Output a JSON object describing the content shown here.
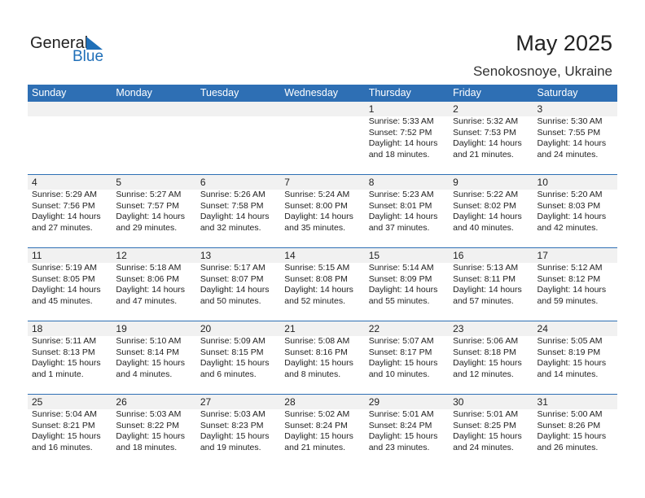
{
  "logo": {
    "general": "General",
    "blue": "Blue"
  },
  "title": "May 2025",
  "location": "Senokosnoye, Ukraine",
  "colors": {
    "header": "#2e6fb4",
    "strip": "#f1f1f1",
    "logo_blue": "#1f6fb8"
  },
  "weekdays": [
    "Sunday",
    "Monday",
    "Tuesday",
    "Wednesday",
    "Thursday",
    "Friday",
    "Saturday"
  ],
  "weeks": [
    [
      null,
      null,
      null,
      null,
      {
        "day": "1",
        "sunrise": "Sunrise: 5:33 AM",
        "sunset": "Sunset: 7:52 PM",
        "daylight": "Daylight: 14 hours",
        "minutes": "and 18 minutes."
      },
      {
        "day": "2",
        "sunrise": "Sunrise: 5:32 AM",
        "sunset": "Sunset: 7:53 PM",
        "daylight": "Daylight: 14 hours",
        "minutes": "and 21 minutes."
      },
      {
        "day": "3",
        "sunrise": "Sunrise: 5:30 AM",
        "sunset": "Sunset: 7:55 PM",
        "daylight": "Daylight: 14 hours",
        "minutes": "and 24 minutes."
      }
    ],
    [
      {
        "day": "4",
        "sunrise": "Sunrise: 5:29 AM",
        "sunset": "Sunset: 7:56 PM",
        "daylight": "Daylight: 14 hours",
        "minutes": "and 27 minutes."
      },
      {
        "day": "5",
        "sunrise": "Sunrise: 5:27 AM",
        "sunset": "Sunset: 7:57 PM",
        "daylight": "Daylight: 14 hours",
        "minutes": "and 29 minutes."
      },
      {
        "day": "6",
        "sunrise": "Sunrise: 5:26 AM",
        "sunset": "Sunset: 7:58 PM",
        "daylight": "Daylight: 14 hours",
        "minutes": "and 32 minutes."
      },
      {
        "day": "7",
        "sunrise": "Sunrise: 5:24 AM",
        "sunset": "Sunset: 8:00 PM",
        "daylight": "Daylight: 14 hours",
        "minutes": "and 35 minutes."
      },
      {
        "day": "8",
        "sunrise": "Sunrise: 5:23 AM",
        "sunset": "Sunset: 8:01 PM",
        "daylight": "Daylight: 14 hours",
        "minutes": "and 37 minutes."
      },
      {
        "day": "9",
        "sunrise": "Sunrise: 5:22 AM",
        "sunset": "Sunset: 8:02 PM",
        "daylight": "Daylight: 14 hours",
        "minutes": "and 40 minutes."
      },
      {
        "day": "10",
        "sunrise": "Sunrise: 5:20 AM",
        "sunset": "Sunset: 8:03 PM",
        "daylight": "Daylight: 14 hours",
        "minutes": "and 42 minutes."
      }
    ],
    [
      {
        "day": "11",
        "sunrise": "Sunrise: 5:19 AM",
        "sunset": "Sunset: 8:05 PM",
        "daylight": "Daylight: 14 hours",
        "minutes": "and 45 minutes."
      },
      {
        "day": "12",
        "sunrise": "Sunrise: 5:18 AM",
        "sunset": "Sunset: 8:06 PM",
        "daylight": "Daylight: 14 hours",
        "minutes": "and 47 minutes."
      },
      {
        "day": "13",
        "sunrise": "Sunrise: 5:17 AM",
        "sunset": "Sunset: 8:07 PM",
        "daylight": "Daylight: 14 hours",
        "minutes": "and 50 minutes."
      },
      {
        "day": "14",
        "sunrise": "Sunrise: 5:15 AM",
        "sunset": "Sunset: 8:08 PM",
        "daylight": "Daylight: 14 hours",
        "minutes": "and 52 minutes."
      },
      {
        "day": "15",
        "sunrise": "Sunrise: 5:14 AM",
        "sunset": "Sunset: 8:09 PM",
        "daylight": "Daylight: 14 hours",
        "minutes": "and 55 minutes."
      },
      {
        "day": "16",
        "sunrise": "Sunrise: 5:13 AM",
        "sunset": "Sunset: 8:11 PM",
        "daylight": "Daylight: 14 hours",
        "minutes": "and 57 minutes."
      },
      {
        "day": "17",
        "sunrise": "Sunrise: 5:12 AM",
        "sunset": "Sunset: 8:12 PM",
        "daylight": "Daylight: 14 hours",
        "minutes": "and 59 minutes."
      }
    ],
    [
      {
        "day": "18",
        "sunrise": "Sunrise: 5:11 AM",
        "sunset": "Sunset: 8:13 PM",
        "daylight": "Daylight: 15 hours",
        "minutes": "and 1 minute."
      },
      {
        "day": "19",
        "sunrise": "Sunrise: 5:10 AM",
        "sunset": "Sunset: 8:14 PM",
        "daylight": "Daylight: 15 hours",
        "minutes": "and 4 minutes."
      },
      {
        "day": "20",
        "sunrise": "Sunrise: 5:09 AM",
        "sunset": "Sunset: 8:15 PM",
        "daylight": "Daylight: 15 hours",
        "minutes": "and 6 minutes."
      },
      {
        "day": "21",
        "sunrise": "Sunrise: 5:08 AM",
        "sunset": "Sunset: 8:16 PM",
        "daylight": "Daylight: 15 hours",
        "minutes": "and 8 minutes."
      },
      {
        "day": "22",
        "sunrise": "Sunrise: 5:07 AM",
        "sunset": "Sunset: 8:17 PM",
        "daylight": "Daylight: 15 hours",
        "minutes": "and 10 minutes."
      },
      {
        "day": "23",
        "sunrise": "Sunrise: 5:06 AM",
        "sunset": "Sunset: 8:18 PM",
        "daylight": "Daylight: 15 hours",
        "minutes": "and 12 minutes."
      },
      {
        "day": "24",
        "sunrise": "Sunrise: 5:05 AM",
        "sunset": "Sunset: 8:19 PM",
        "daylight": "Daylight: 15 hours",
        "minutes": "and 14 minutes."
      }
    ],
    [
      {
        "day": "25",
        "sunrise": "Sunrise: 5:04 AM",
        "sunset": "Sunset: 8:21 PM",
        "daylight": "Daylight: 15 hours",
        "minutes": "and 16 minutes."
      },
      {
        "day": "26",
        "sunrise": "Sunrise: 5:03 AM",
        "sunset": "Sunset: 8:22 PM",
        "daylight": "Daylight: 15 hours",
        "minutes": "and 18 minutes."
      },
      {
        "day": "27",
        "sunrise": "Sunrise: 5:03 AM",
        "sunset": "Sunset: 8:23 PM",
        "daylight": "Daylight: 15 hours",
        "minutes": "and 19 minutes."
      },
      {
        "day": "28",
        "sunrise": "Sunrise: 5:02 AM",
        "sunset": "Sunset: 8:24 PM",
        "daylight": "Daylight: 15 hours",
        "minutes": "and 21 minutes."
      },
      {
        "day": "29",
        "sunrise": "Sunrise: 5:01 AM",
        "sunset": "Sunset: 8:24 PM",
        "daylight": "Daylight: 15 hours",
        "minutes": "and 23 minutes."
      },
      {
        "day": "30",
        "sunrise": "Sunrise: 5:01 AM",
        "sunset": "Sunset: 8:25 PM",
        "daylight": "Daylight: 15 hours",
        "minutes": "and 24 minutes."
      },
      {
        "day": "31",
        "sunrise": "Sunrise: 5:00 AM",
        "sunset": "Sunset: 8:26 PM",
        "daylight": "Daylight: 15 hours",
        "minutes": "and 26 minutes."
      }
    ]
  ]
}
